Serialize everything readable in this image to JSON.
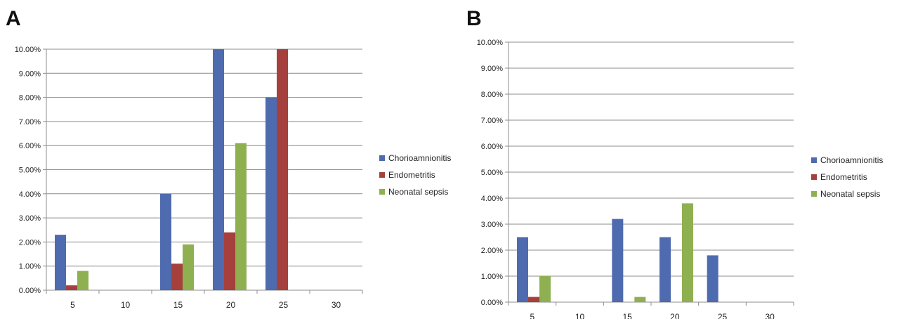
{
  "colors": {
    "chorioamnionitis": "#4F6BAF",
    "endometritis": "#A6403D",
    "neonatal_sepsis": "#8FB050",
    "grid": "#8c8c8c",
    "axis": "#8c8c8c"
  },
  "panels": [
    {
      "letter": "A"
    },
    {
      "letter": "B"
    }
  ],
  "chart_data": [
    {
      "type": "bar",
      "panel": "A",
      "categories": [
        "5",
        "10",
        "15",
        "20",
        "25",
        "30"
      ],
      "series": [
        {
          "name": "Chorioamnionitis",
          "values": [
            2.3,
            0,
            4.0,
            10.0,
            8.0,
            0
          ]
        },
        {
          "name": "Endometritis",
          "values": [
            0.2,
            0,
            1.1,
            2.4,
            10.0,
            0
          ]
        },
        {
          "name": "Neonatal sepsis",
          "values": [
            0.8,
            0,
            1.9,
            6.1,
            0,
            0
          ]
        }
      ],
      "yticks": [
        "0.00%",
        "1.00%",
        "2.00%",
        "3.00%",
        "4.00%",
        "5.00%",
        "6.00%",
        "7.00%",
        "8.00%",
        "9.00%",
        "10.00%"
      ],
      "ylim": [
        0,
        10
      ],
      "grid": true,
      "legend": "right"
    },
    {
      "type": "bar",
      "panel": "B",
      "categories": [
        "5",
        "10",
        "15",
        "20",
        "25",
        "30"
      ],
      "series": [
        {
          "name": "Chorioamnionitis",
          "values": [
            2.5,
            0,
            3.2,
            2.5,
            1.8,
            0
          ]
        },
        {
          "name": "Endometritis",
          "values": [
            0.2,
            0,
            0,
            0,
            0,
            0
          ]
        },
        {
          "name": "Neonatal sepsis",
          "values": [
            1.0,
            0,
            0.2,
            3.8,
            0,
            0
          ]
        }
      ],
      "yticks": [
        "0.00%",
        "1.00%",
        "2.00%",
        "3.00%",
        "4.00%",
        "5.00%",
        "6.00%",
        "7.00%",
        "8.00%",
        "9.00%",
        "10.00%"
      ],
      "ylim": [
        0,
        10
      ],
      "grid": true,
      "legend": "right"
    }
  ]
}
